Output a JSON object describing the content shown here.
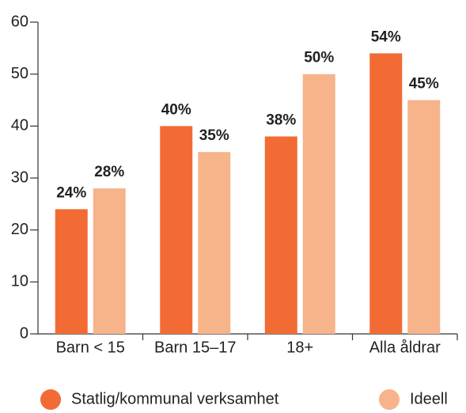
{
  "chart_data": {
    "type": "bar",
    "categories": [
      "Barn < 15",
      "Barn 15–17",
      "18+",
      "Alla åldrar"
    ],
    "series": [
      {
        "name": "Statlig/kommunal verksamhet",
        "color": "#f26b35",
        "values": [
          24,
          40,
          38,
          54
        ],
        "value_labels": [
          "24%",
          "40%",
          "38%",
          "54%"
        ]
      },
      {
        "name": "Ideell",
        "color": "#f7b38a",
        "values": [
          28,
          35,
          50,
          45
        ],
        "value_labels": [
          "28%",
          "35%",
          "50%",
          "45%"
        ]
      }
    ],
    "ylim": [
      0,
      60
    ],
    "yticks": [
      0,
      10,
      20,
      30,
      40,
      50,
      60
    ],
    "grid": false,
    "legend": "bottom"
  }
}
